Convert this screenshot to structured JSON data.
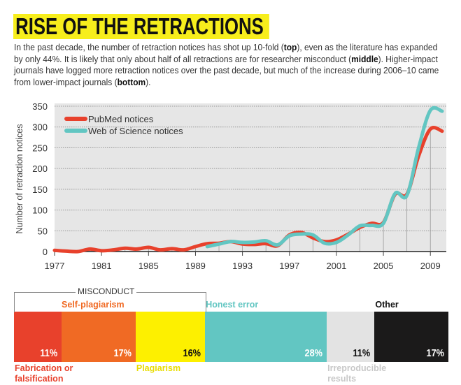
{
  "title": "RISE OF THE RETRACTIONS",
  "intro": [
    {
      "text": "In the past decade, the number of retraction notices has shot up 10-fold (",
      "bold": false
    },
    {
      "text": "top",
      "bold": true
    },
    {
      "text": "), even as the literature has expanded by only 44%. It is likely that only about half of all retractions are for researcher misconduct (",
      "bold": false
    },
    {
      "text": "middle",
      "bold": true
    },
    {
      "text": "). Higher-impact journals have logged more retraction notices over the past decade, but much of the increase during 2006–10 came from lower-impact journals (",
      "bold": false
    },
    {
      "text": "bottom",
      "bold": true
    },
    {
      "text": ").",
      "bold": false
    }
  ],
  "chart_data": [
    {
      "type": "line",
      "title": "",
      "xlabel": "",
      "ylabel": "Number of retraction notices",
      "xlim": [
        1977,
        2010
      ],
      "ylim": [
        0,
        350
      ],
      "yticks": [
        0,
        50,
        100,
        150,
        200,
        250,
        300,
        350
      ],
      "xticks": [
        1977,
        1981,
        1985,
        1989,
        1993,
        1997,
        2001,
        2005,
        2009
      ],
      "grid": true,
      "legend": "top-left",
      "series": [
        {
          "name": "PubMed notices",
          "color": "#e8412c",
          "x": [
            1977,
            1978,
            1979,
            1980,
            1981,
            1982,
            1983,
            1984,
            1985,
            1986,
            1987,
            1988,
            1989,
            1990,
            1991,
            1992,
            1993,
            1994,
            1995,
            1996,
            1997,
            1998,
            1999,
            2000,
            2001,
            2002,
            2003,
            2004,
            2005,
            2006,
            2007,
            2008,
            2009,
            2010
          ],
          "y": [
            3,
            1,
            0,
            6,
            2,
            4,
            8,
            6,
            10,
            4,
            7,
            4,
            12,
            19,
            20,
            24,
            18,
            17,
            19,
            14,
            40,
            46,
            33,
            24,
            28,
            42,
            58,
            68,
            70,
            138,
            138,
            230,
            295,
            290
          ]
        },
        {
          "name": "Web of Science notices",
          "color": "#62c6c2",
          "x": [
            1990,
            1991,
            1992,
            1993,
            1994,
            1995,
            1996,
            1997,
            1998,
            1999,
            2000,
            2001,
            2002,
            2003,
            2004,
            2005,
            2006,
            2007,
            2008,
            2009,
            2010
          ],
          "y": [
            12,
            18,
            24,
            22,
            23,
            26,
            16,
            38,
            42,
            40,
            20,
            22,
            40,
            62,
            63,
            68,
            140,
            135,
            250,
            340,
            338
          ]
        }
      ]
    },
    {
      "type": "bar",
      "stacked": true,
      "group_label": "MISCONDUCT",
      "categories": [
        "Fabrication or falsification",
        "Self-plagiarism",
        "Plagiarism",
        "Honest error",
        "Irreproducible results",
        "Other"
      ],
      "values": [
        11,
        17,
        16,
        28,
        11,
        17
      ],
      "value_labels": [
        "11%",
        "17%",
        "16%",
        "28%",
        "11%",
        "17%"
      ],
      "colors": [
        "#e8412c",
        "#f06a24",
        "#fdf000",
        "#62c6c2",
        "#e3e3e3",
        "#1b1a1a"
      ],
      "label_colors": [
        "#e8412c",
        "#f06a24",
        "#e8dc00",
        "#62c6c2",
        "#c8c8c8",
        "#111111"
      ],
      "pct_colors": [
        "#ffffff",
        "#ffffff",
        "#111111",
        "#ffffff",
        "#111111",
        "#ffffff"
      ]
    }
  ]
}
